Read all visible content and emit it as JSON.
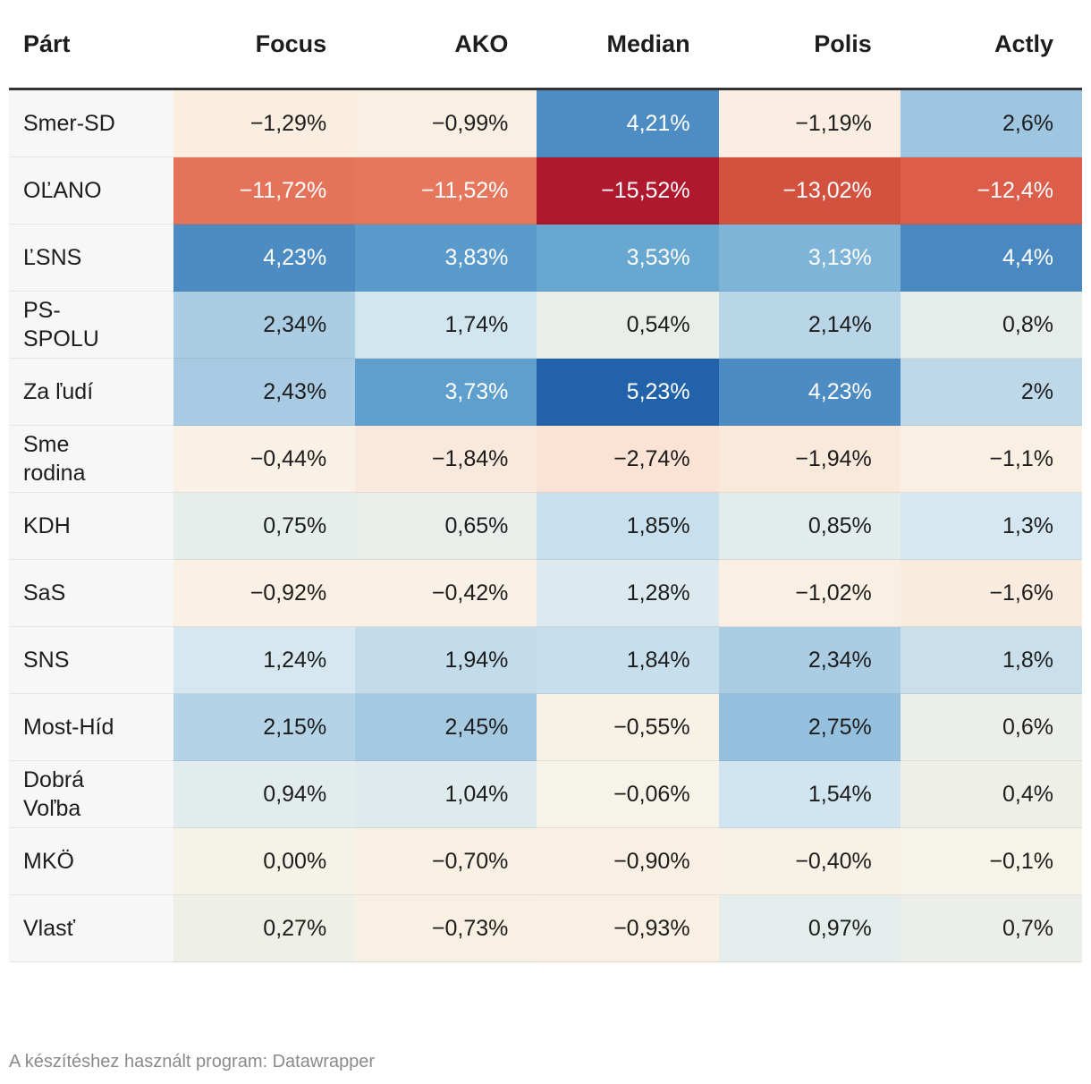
{
  "table": {
    "header": [
      "Párt",
      "Focus",
      "AKO",
      "Median",
      "Polis",
      "Actly"
    ],
    "rows": [
      [
        "Smer-SD",
        "−1,29%",
        "−0,99%",
        "4,21%",
        "−1,19%",
        "2,6%"
      ],
      [
        "OĽANO",
        "−11,72%",
        "−11,52%",
        "−15,52%",
        "−13,02%",
        "−12,4%"
      ],
      [
        "ĽSNS",
        "4,23%",
        "3,83%",
        "3,53%",
        "3,13%",
        "4,4%"
      ],
      [
        "PS-SPOLU",
        "2,34%",
        "1,74%",
        "0,54%",
        "2,14%",
        "0,8%"
      ],
      [
        "Za ľudí",
        "2,43%",
        "3,73%",
        "5,23%",
        "4,23%",
        "2%"
      ],
      [
        "Sme rodina",
        "−0,44%",
        "−1,84%",
        "−2,74%",
        "−1,94%",
        "−1,1%"
      ],
      [
        "KDH",
        "0,75%",
        "0,65%",
        "1,85%",
        "0,85%",
        "1,3%"
      ],
      [
        "SaS",
        "−0,92%",
        "−0,42%",
        "1,28%",
        "−1,02%",
        "−1,6%"
      ],
      [
        "SNS",
        "1,24%",
        "1,94%",
        "1,84%",
        "2,34%",
        "1,8%"
      ],
      [
        "Most-Híd",
        "2,15%",
        "2,45%",
        "−0,55%",
        "2,75%",
        "0,6%"
      ],
      [
        "Dobrá Voľba",
        "0,94%",
        "1,04%",
        "−0,06%",
        "1,54%",
        "0,4%"
      ],
      [
        "MKÖ",
        "0,00%",
        "−0,70%",
        "−0,90%",
        "−0,40%",
        "−0,1%"
      ],
      [
        "Vlasť",
        "0,27%",
        "−0,73%",
        "−0,93%",
        "0,97%",
        "0,7%"
      ]
    ],
    "cell_colors": [
      [
        "#faeee1",
        "#f9efe3",
        "#4e8dc3",
        "#faeee2",
        "#9ec6e0"
      ],
      [
        "#e5735a",
        "#e6775c",
        "#b0182e",
        "#d2513f",
        "#dc5e4a"
      ],
      [
        "#4d8cc3",
        "#5a9bcb",
        "#67a7d0",
        "#7db4d7",
        "#4a88c1"
      ],
      [
        "#abcde4",
        "#d2e6f0",
        "#eaeee9",
        "#b9d6e8",
        "#e5ecea"
      ],
      [
        "#a8cbe3",
        "#5e9fcd",
        "#2262ab",
        "#4d8cc3",
        "#bcd8e9"
      ],
      [
        "#f9f1e6",
        "#f9e9dc",
        "#fae3d4",
        "#f9e9da",
        "#f9efe3"
      ],
      [
        "#e6eeec",
        "#e9eeea",
        "#c8e0ed",
        "#e2ecec",
        "#d5e7f0"
      ],
      [
        "#faf0e3",
        "#f9f1e6",
        "#dce9ef",
        "#faefe3",
        "#f9ebde"
      ],
      [
        "#d6e7f0",
        "#c3dcec",
        "#c7deed",
        "#abcde4",
        "#c9dfec"
      ],
      [
        "#b5d3e7",
        "#a5c9e1",
        "#f8f1e6",
        "#95c0de",
        "#ebeee9"
      ],
      [
        "#e3ecec",
        "#dfeaed",
        "#f6f3e8",
        "#d1e5f0",
        "#eef0e8"
      ],
      [
        "#f5f3e8",
        "#f9f0e4",
        "#f9efe3",
        "#f8f1e6",
        "#f6f3e8"
      ],
      [
        "#eef0e8",
        "#f9f0e4",
        "#f9efe3",
        "#e4ecec",
        "#ecefe9"
      ]
    ]
  },
  "footer": "A készítéshez használt program: Datawrapper"
}
